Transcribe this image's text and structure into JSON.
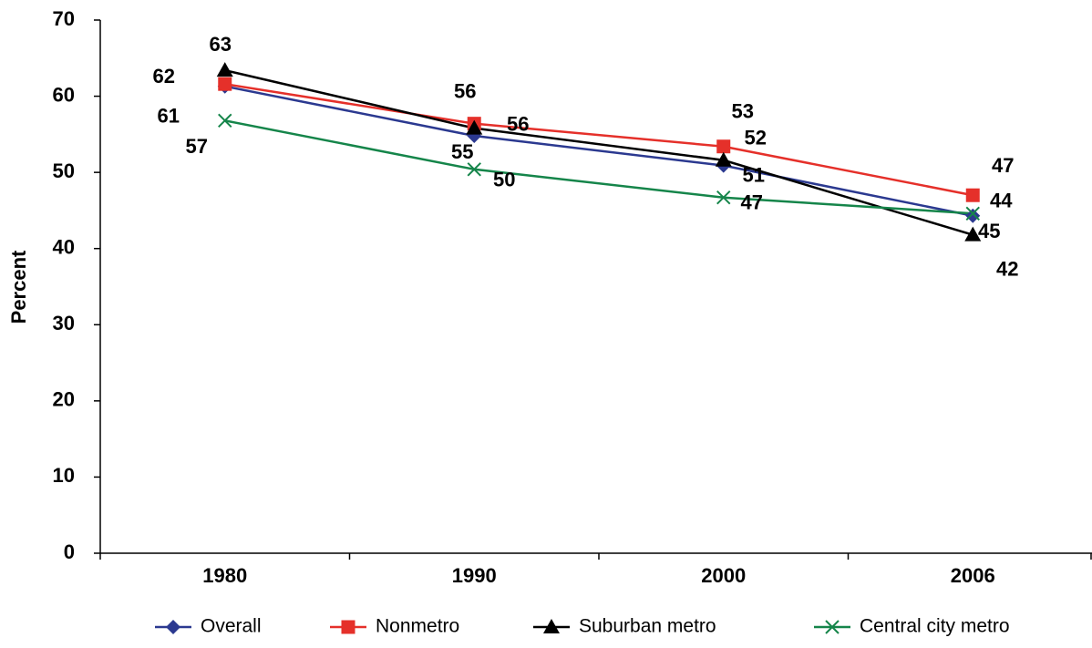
{
  "chart_data": {
    "type": "line",
    "y_label": "Percent",
    "categories": [
      "1980",
      "1990",
      "2000",
      "2006"
    ],
    "series": [
      {
        "name": "Overall",
        "color": "#2b3990",
        "marker": "diamond",
        "values": [
          61.3,
          54.8,
          50.9,
          44.3
        ],
        "value_labels": [
          "61",
          "55",
          "51",
          "44"
        ]
      },
      {
        "name": "Nonmetro",
        "color": "#e5302a",
        "marker": "square",
        "values": [
          61.6,
          56.4,
          53.4,
          47.0
        ],
        "value_labels": [
          "62",
          "56",
          "53",
          "47"
        ]
      },
      {
        "name": "Suburban metro",
        "color": "#000000",
        "marker": "triangle",
        "values": [
          63.4,
          55.8,
          51.6,
          41.8
        ],
        "value_labels": [
          "63",
          "56",
          "52",
          "42"
        ]
      },
      {
        "name": "Central city metro",
        "color": "#15854a",
        "marker": "x",
        "values": [
          56.8,
          50.4,
          46.7,
          44.6
        ],
        "value_labels": [
          "57",
          "50",
          "47",
          "45"
        ]
      }
    ],
    "ylim": [
      0,
      70
    ],
    "yticks": [
      0,
      10,
      20,
      30,
      40,
      50,
      60,
      70
    ],
    "grid": false,
    "legend": "bottom"
  }
}
